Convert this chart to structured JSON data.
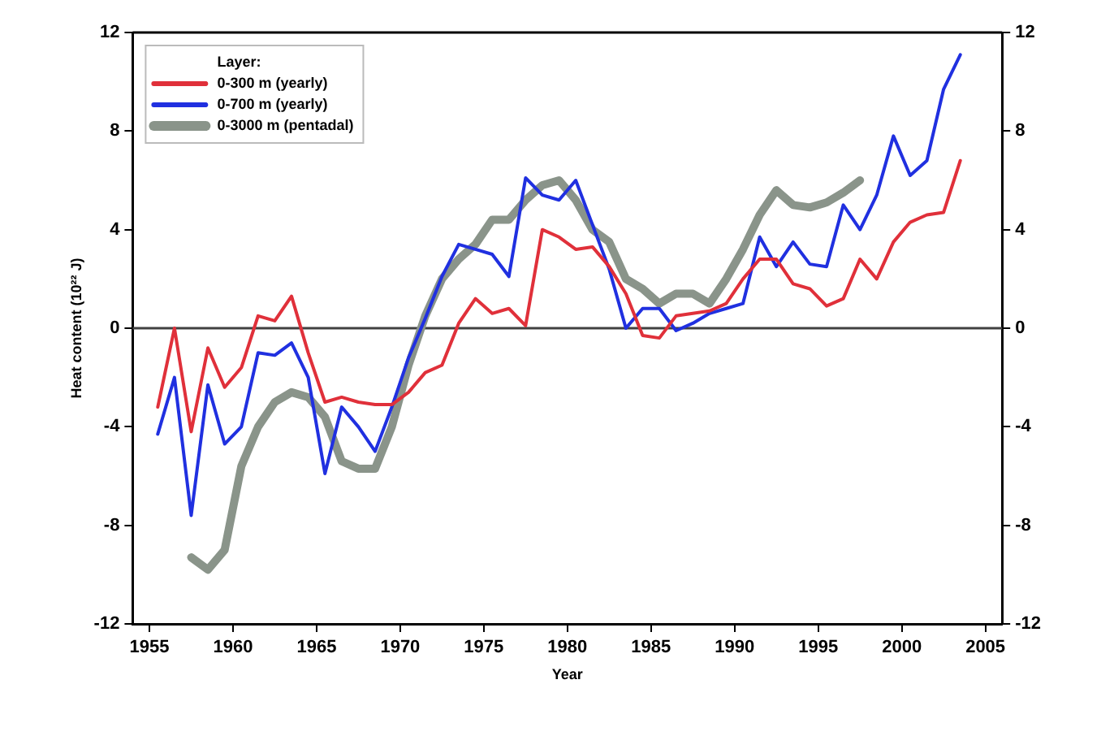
{
  "chart_data": {
    "type": "line",
    "xlabel": "Year",
    "ylabel": "Heat content (10²² J)",
    "legend_title": "Layer:",
    "legend": "top left",
    "grid": false,
    "marker": "none",
    "line_style": "solid",
    "xlim": [
      1954,
      2006
    ],
    "xticks": [
      1955,
      1960,
      1965,
      1970,
      1975,
      1980,
      1985,
      1990,
      1995,
      2000,
      2005
    ],
    "ylim": [
      -12,
      12
    ],
    "yticks": [
      -12,
      -8,
      -4,
      0,
      4,
      8,
      12
    ],
    "y2lim": [
      -12,
      12
    ],
    "y2ticks": [
      -12,
      -8,
      -4,
      0,
      4,
      8,
      12
    ],
    "ref_lines": [
      {
        "axis": "y",
        "value": 0,
        "color": "#404040"
      }
    ],
    "series": [
      {
        "name": "0-300 m (yearly)",
        "color": "#e0303a",
        "x": [
          1955.5,
          1956.5,
          1957.5,
          1958.5,
          1959.5,
          1960.5,
          1961.5,
          1962.5,
          1963.5,
          1964.5,
          1965.5,
          1966.5,
          1967.5,
          1968.5,
          1969.5,
          1970.5,
          1971.5,
          1972.5,
          1973.5,
          1974.5,
          1975.5,
          1976.5,
          1977.5,
          1978.5,
          1979.5,
          1980.5,
          1981.5,
          1982.5,
          1983.5,
          1984.5,
          1985.5,
          1986.5,
          1987.5,
          1988.5,
          1989.5,
          1990.5,
          1991.5,
          1992.5,
          1993.5,
          1994.5,
          1995.5,
          1996.5,
          1997.5,
          1998.5,
          1999.5,
          2000.5,
          2001.5,
          2002.5,
          2003.5
        ],
        "values": [
          -3.2,
          0,
          -4.2,
          -0.8,
          -2.4,
          -1.6,
          0.5,
          0.3,
          1.3,
          -1.0,
          -3.0,
          -2.8,
          -3.0,
          -3.1,
          -3.1,
          -2.6,
          -1.8,
          -1.5,
          0.2,
          1.2,
          0.6,
          0.8,
          0.1,
          4.0,
          3.7,
          3.2,
          3.3,
          2.5,
          1.4,
          -0.3,
          -0.4,
          0.5,
          0.6,
          0.7,
          1.0,
          2.0,
          2.8,
          2.8,
          1.8,
          1.6,
          0.9,
          1.2,
          2.8,
          2.0,
          3.5,
          4.3,
          4.6,
          4.7,
          6.8
        ]
      },
      {
        "name": "0-700 m (yearly)",
        "color": "#2030e0",
        "x": [
          1955.5,
          1956.5,
          1957.5,
          1958.5,
          1959.5,
          1960.5,
          1961.5,
          1962.5,
          1963.5,
          1964.5,
          1965.5,
          1966.5,
          1967.5,
          1968.5,
          1969.5,
          1970.5,
          1971.5,
          1972.5,
          1973.5,
          1974.5,
          1975.5,
          1976.5,
          1977.5,
          1978.5,
          1979.5,
          1980.5,
          1981.5,
          1982.5,
          1983.5,
          1984.5,
          1985.5,
          1986.5,
          1987.5,
          1988.5,
          1989.5,
          1990.5,
          1991.5,
          1992.5,
          1993.5,
          1994.5,
          1995.5,
          1996.5,
          1997.5,
          1998.5,
          1999.5,
          2000.5,
          2001.5,
          2002.5,
          2003.5
        ],
        "values": [
          -4.3,
          -2.0,
          -7.6,
          -2.3,
          -4.7,
          -4.0,
          -1.0,
          -1.1,
          -0.6,
          -2.0,
          -5.9,
          -3.2,
          -4.0,
          -5.0,
          -3.2,
          -1.2,
          0.4,
          2.1,
          3.4,
          3.2,
          3.0,
          2.1,
          6.1,
          5.4,
          5.2,
          6.0,
          4.2,
          2.4,
          0.0,
          0.8,
          0.8,
          -0.1,
          0.2,
          0.6,
          0.8,
          1.0,
          3.7,
          2.5,
          3.5,
          2.6,
          2.5,
          5.0,
          4.0,
          5.4,
          7.8,
          6.2,
          6.8,
          9.7,
          11.1
        ]
      },
      {
        "name": "0-3000 m (pentadal)",
        "color": "#8a948a",
        "x": [
          1957.5,
          1958.5,
          1959.5,
          1960.5,
          1961.5,
          1962.5,
          1963.5,
          1964.5,
          1965.5,
          1966.5,
          1967.5,
          1968.5,
          1969.5,
          1970.5,
          1971.5,
          1972.5,
          1973.5,
          1974.5,
          1975.5,
          1976.5,
          1977.5,
          1978.5,
          1979.5,
          1980.5,
          1981.5,
          1982.5,
          1983.5,
          1984.5,
          1985.5,
          1986.5,
          1987.5,
          1988.5,
          1989.5,
          1990.5,
          1991.5,
          1992.5,
          1993.5,
          1994.5,
          1995.5,
          1996.5,
          1997.5
        ],
        "values": [
          -9.3,
          -9.8,
          -9.0,
          -5.6,
          -4.0,
          -3.0,
          -2.6,
          -2.8,
          -3.6,
          -5.4,
          -5.7,
          -5.7,
          -4.0,
          -1.5,
          0.5,
          2.0,
          2.8,
          3.4,
          4.4,
          4.4,
          5.2,
          5.8,
          6.0,
          5.2,
          4.0,
          3.5,
          2.0,
          1.6,
          1.0,
          1.4,
          1.4,
          1.0,
          2.0,
          3.2,
          4.6,
          5.6,
          5.0,
          4.9,
          5.1,
          5.5,
          6.0
        ]
      }
    ]
  }
}
